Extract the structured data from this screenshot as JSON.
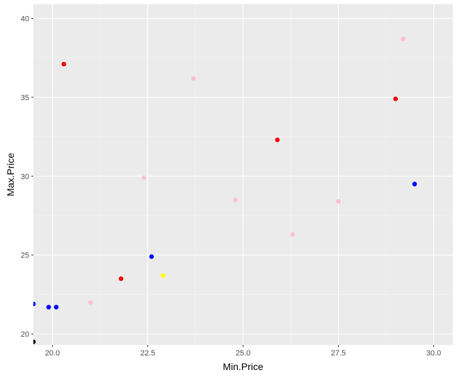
{
  "chart_data": {
    "type": "scatter",
    "xlabel": "Min.Price",
    "ylabel": "Max.Price",
    "xlim": [
      19.5,
      30.5
    ],
    "ylim": [
      19.3,
      40.9
    ],
    "x_ticks": [
      20.0,
      22.5,
      25.0,
      27.5,
      30.0
    ],
    "x_tick_labels": [
      "20.0",
      "22.5",
      "25.0",
      "27.5",
      "30.0"
    ],
    "y_ticks": [
      20,
      25,
      30,
      35,
      40
    ],
    "y_tick_labels": [
      "20",
      "25",
      "30",
      "35",
      "40"
    ],
    "grid": true,
    "panel_background": "#ebebeb",
    "points": [
      {
        "x": 20.3,
        "y": 37.1,
        "color": "#ff0000"
      },
      {
        "x": 29.0,
        "y": 34.9,
        "color": "#ff0000"
      },
      {
        "x": 25.9,
        "y": 32.3,
        "color": "#ff0000"
      },
      {
        "x": 21.8,
        "y": 23.5,
        "color": "#ff0000"
      },
      {
        "x": 29.2,
        "y": 38.7,
        "color": "#ffc0cb"
      },
      {
        "x": 23.7,
        "y": 36.2,
        "color": "#ffc0cb"
      },
      {
        "x": 22.4,
        "y": 29.9,
        "color": "#ffc0cb"
      },
      {
        "x": 24.8,
        "y": 28.5,
        "color": "#ffc0cb"
      },
      {
        "x": 27.5,
        "y": 28.4,
        "color": "#ffc0cb"
      },
      {
        "x": 26.3,
        "y": 26.3,
        "color": "#ffc0cb"
      },
      {
        "x": 21.0,
        "y": 22.0,
        "color": "#ffc0cb"
      },
      {
        "x": 29.5,
        "y": 29.5,
        "color": "#0000ff"
      },
      {
        "x": 22.6,
        "y": 24.9,
        "color": "#0000ff"
      },
      {
        "x": 19.5,
        "y": 21.9,
        "color": "#0000ff"
      },
      {
        "x": 19.9,
        "y": 21.7,
        "color": "#0000ff"
      },
      {
        "x": 20.1,
        "y": 21.7,
        "color": "#0000ff"
      },
      {
        "x": 22.9,
        "y": 23.7,
        "color": "#ffff00"
      },
      {
        "x": 19.5,
        "y": 19.5,
        "color": "#000000"
      }
    ]
  }
}
